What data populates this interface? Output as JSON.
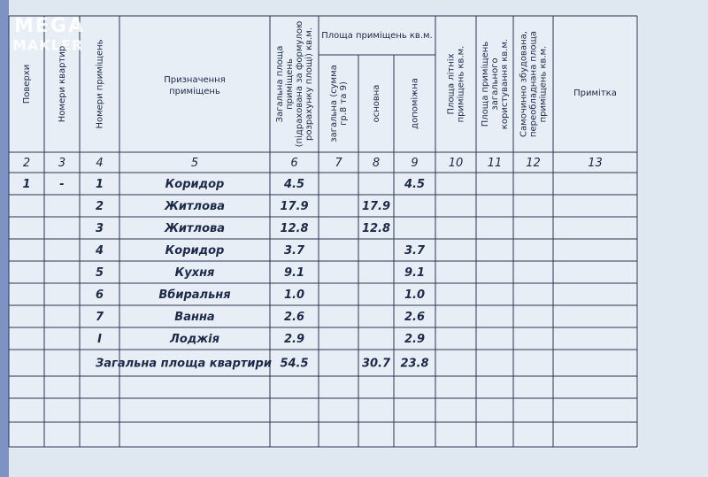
{
  "watermark": {
    "line1": "MEGA",
    "line2": "MAKLER"
  },
  "header": {
    "group": "Площа приміщень кв.м.",
    "columns": [
      {
        "lines": [
          "Поверхи"
        ]
      },
      {
        "lines": [
          "Номери квартир"
        ]
      },
      {
        "lines": [
          "Номери приміщень"
        ]
      },
      {
        "lines": [
          "Призначення",
          "приміщень"
        ]
      },
      {
        "lines": [
          "Загальна площа",
          "приміщень",
          "(підрахована за формулою",
          "розрахунку площі) кв.м."
        ]
      },
      {
        "lines": [
          "загальна (сумма",
          "гр.8 та 9)"
        ]
      },
      {
        "lines": [
          "основна"
        ]
      },
      {
        "lines": [
          "допоміжна"
        ]
      },
      {
        "lines": [
          "Площа літніх",
          "приміщень кв.м."
        ]
      },
      {
        "lines": [
          "Площа приміщень",
          "загального",
          "користування кв.м."
        ]
      },
      {
        "lines": [
          "Самочинно збудована,",
          "переобладнана площа",
          "приміщень кв.м."
        ]
      },
      {
        "lines": [
          "Примітка"
        ]
      }
    ],
    "numbers": [
      "2",
      "3",
      "4",
      "5",
      "6",
      "7",
      "8",
      "9",
      "10",
      "11",
      "12",
      "13"
    ]
  },
  "table": {
    "rows": [
      {
        "floor": "1",
        "apartment": "-",
        "room": "1",
        "name": "Коридор",
        "total": "4.5",
        "aux": "4.5"
      },
      {
        "room": "2",
        "name": "Житлова",
        "total": "17.9",
        "main": "17.9"
      },
      {
        "room": "3",
        "name": "Житлова",
        "total": "12.8",
        "main": "12.8"
      },
      {
        "room": "4",
        "name": "Коридор",
        "total": "3.7",
        "aux": "3.7"
      },
      {
        "room": "5",
        "name": "Кухня",
        "total": "9.1",
        "aux": "9.1"
      },
      {
        "room": "6",
        "name": "Вбиральня",
        "total": "1.0",
        "aux": "1.0"
      },
      {
        "room": "7",
        "name": "Ванна",
        "total": "2.6",
        "aux": "2.6"
      },
      {
        "room": "І",
        "name": "Лоджія",
        "total": "2.9",
        "aux": "2.9"
      }
    ],
    "summary": {
      "label": "Загальна площа квартири",
      "total": "54.5",
      "main": "30.7",
      "aux": "23.8"
    }
  }
}
